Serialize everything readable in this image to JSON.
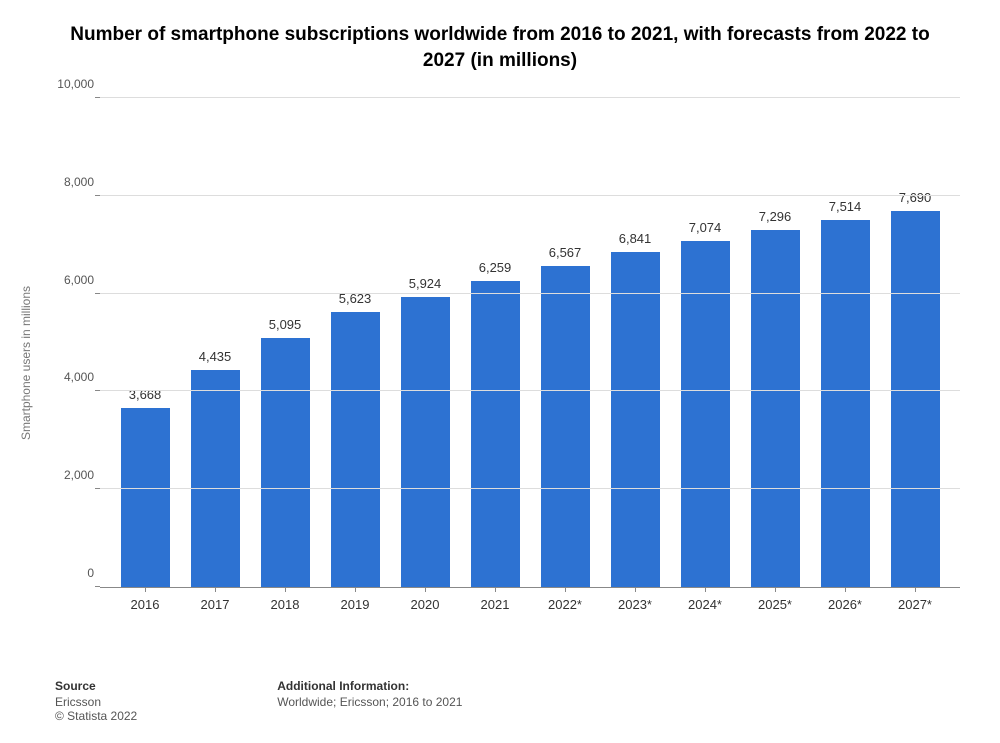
{
  "title": "Number of smartphone subscriptions worldwide from 2016 to 2021, with forecasts from 2022 to 2027 (in millions)",
  "chart": {
    "type": "bar",
    "ylabel": "Smartphone users in millions",
    "ymax": 10000,
    "ytick_step": 2000,
    "yticks": [
      "0",
      "2,000",
      "4,000",
      "6,000",
      "8,000",
      "10,000"
    ],
    "bar_color": "#2d72d2",
    "grid_color": "#dddddd",
    "background_color": "#ffffff",
    "bar_width_ratio": 0.7,
    "label_fontsize": 13,
    "ylabel_fontsize": 12,
    "categories": [
      "2016",
      "2017",
      "2018",
      "2019",
      "2020",
      "2021",
      "2022*",
      "2023*",
      "2024*",
      "2025*",
      "2026*",
      "2027*"
    ],
    "values": [
      3668,
      4435,
      5095,
      5623,
      5924,
      6259,
      6567,
      6841,
      7074,
      7296,
      7514,
      7690
    ],
    "value_labels": [
      "3,668",
      "4,435",
      "5,095",
      "5,623",
      "5,924",
      "6,259",
      "6,567",
      "6,841",
      "7,074",
      "7,296",
      "7,514",
      "7,690"
    ]
  },
  "footer": {
    "source_heading": "Source",
    "source_line1": "Ericsson",
    "source_line2": "© Statista 2022",
    "info_heading": "Additional Information:",
    "info_line": "Worldwide; Ericsson; 2016 to 2021"
  }
}
